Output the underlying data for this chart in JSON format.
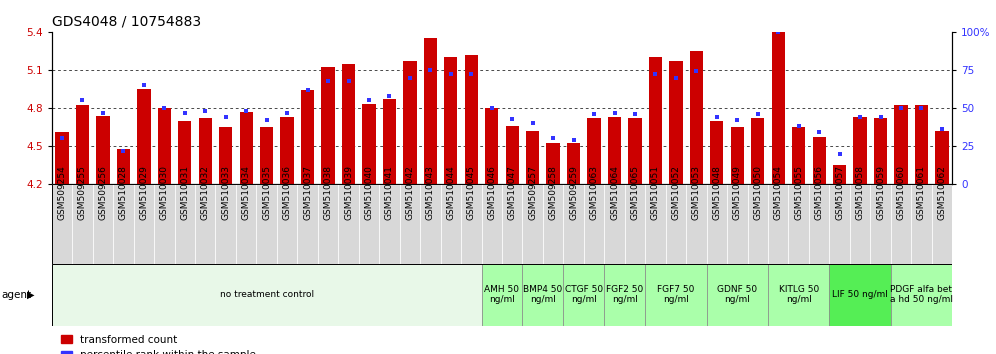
{
  "title": "GDS4048 / 10754883",
  "bar_labels": [
    "GSM509254",
    "GSM509255",
    "GSM509256",
    "GSM510028",
    "GSM510029",
    "GSM510030",
    "GSM510031",
    "GSM510032",
    "GSM510033",
    "GSM510034",
    "GSM510035",
    "GSM510036",
    "GSM510037",
    "GSM510038",
    "GSM510039",
    "GSM510040",
    "GSM510041",
    "GSM510042",
    "GSM510043",
    "GSM510044",
    "GSM510045",
    "GSM510046",
    "GSM510047",
    "GSM509257",
    "GSM509258",
    "GSM509259",
    "GSM510063",
    "GSM510064",
    "GSM510065",
    "GSM510051",
    "GSM510052",
    "GSM510053",
    "GSM510048",
    "GSM510049",
    "GSM510050",
    "GSM510054",
    "GSM510055",
    "GSM510056",
    "GSM510057",
    "GSM510058",
    "GSM510059",
    "GSM510060",
    "GSM510061",
    "GSM510062"
  ],
  "bar_values": [
    4.61,
    4.82,
    4.74,
    4.48,
    4.95,
    4.8,
    4.7,
    4.72,
    4.65,
    4.77,
    4.65,
    4.73,
    4.94,
    5.12,
    5.15,
    4.83,
    4.87,
    5.17,
    5.35,
    5.2,
    5.22,
    4.8,
    4.66,
    4.62,
    4.52,
    4.52,
    4.72,
    4.73,
    4.72,
    5.2,
    5.17,
    5.25,
    4.7,
    4.65,
    4.72,
    5.4,
    4.65,
    4.57,
    4.35,
    4.73,
    4.72,
    4.82,
    4.82,
    4.62
  ],
  "percentile_values": [
    30,
    55,
    47,
    22,
    65,
    50,
    47,
    48,
    44,
    48,
    42,
    47,
    62,
    68,
    68,
    55,
    58,
    70,
    75,
    72,
    72,
    50,
    43,
    40,
    30,
    29,
    46,
    47,
    46,
    72,
    70,
    74,
    44,
    42,
    46,
    100,
    38,
    34,
    20,
    44,
    44,
    50,
    50,
    36
  ],
  "ylim_left": [
    4.2,
    5.4
  ],
  "ylim_right": [
    0,
    100
  ],
  "yticks_left": [
    4.2,
    4.5,
    4.8,
    5.1,
    5.4
  ],
  "yticks_right": [
    0,
    25,
    50,
    75,
    100
  ],
  "bar_color": "#CC0000",
  "percentile_color": "#3333FF",
  "bar_bottom": 4.2,
  "agent_groups": [
    {
      "label": "no treatment control",
      "start": 0,
      "end": 21,
      "color": "#e8f8e8"
    },
    {
      "label": "AMH 50\nng/ml",
      "start": 21,
      "end": 23,
      "color": "#aaffaa"
    },
    {
      "label": "BMP4 50\nng/ml",
      "start": 23,
      "end": 25,
      "color": "#aaffaa"
    },
    {
      "label": "CTGF 50\nng/ml",
      "start": 25,
      "end": 27,
      "color": "#aaffaa"
    },
    {
      "label": "FGF2 50\nng/ml",
      "start": 27,
      "end": 29,
      "color": "#aaffaa"
    },
    {
      "label": "FGF7 50\nng/ml",
      "start": 29,
      "end": 32,
      "color": "#aaffaa"
    },
    {
      "label": "GDNF 50\nng/ml",
      "start": 32,
      "end": 35,
      "color": "#aaffaa"
    },
    {
      "label": "KITLG 50\nng/ml",
      "start": 35,
      "end": 38,
      "color": "#aaffaa"
    },
    {
      "label": "LIF 50 ng/ml",
      "start": 38,
      "end": 41,
      "color": "#55ee55"
    },
    {
      "label": "PDGF alfa bet\na hd 50 ng/ml",
      "start": 41,
      "end": 44,
      "color": "#aaffaa"
    }
  ],
  "ylabel_left_color": "#CC0000",
  "ylabel_right_color": "#3333FF",
  "title_fontsize": 10,
  "tick_fontsize": 6.5,
  "agent_fontsize": 6.5
}
